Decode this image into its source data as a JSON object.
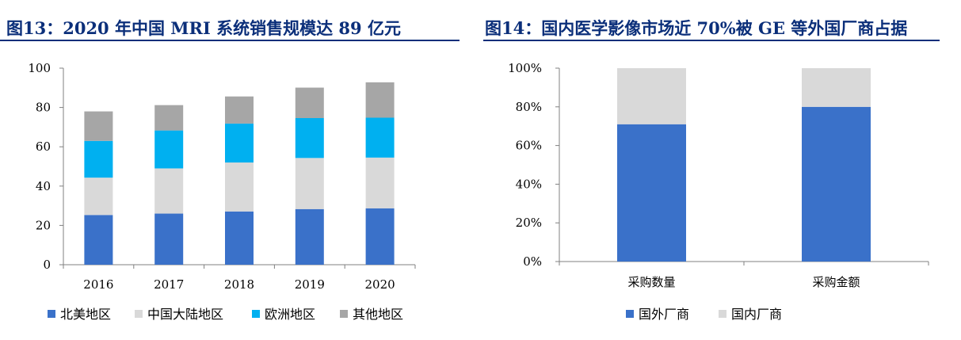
{
  "chart_data": [
    {
      "type": "bar",
      "stacked": true,
      "title": "图13：2020 年中国 MRI 系统销售规模达 89 亿元",
      "categories": [
        "2016",
        "2017",
        "2018",
        "2019",
        "2020"
      ],
      "series": [
        {
          "name": "北美地区",
          "color": "#3a71c9",
          "values": [
            25.3,
            26.0,
            27.1,
            28.3,
            28.7
          ]
        },
        {
          "name": "中国大陆地区",
          "color": "#d9d9d9",
          "values": [
            19.0,
            23.0,
            24.9,
            26.0,
            25.8
          ]
        },
        {
          "name": "欧洲地区",
          "color": "#00b0f0",
          "values": [
            18.7,
            19.3,
            19.8,
            20.3,
            20.3
          ]
        },
        {
          "name": "其他地区",
          "color": "#a6a6a6",
          "values": [
            15.0,
            12.9,
            13.8,
            15.5,
            18.0
          ]
        }
      ],
      "ylim": [
        0,
        100
      ],
      "yticks": [
        "0",
        "20",
        "40",
        "60",
        "80",
        "100"
      ],
      "grid": false,
      "legend": "bottom"
    },
    {
      "type": "bar",
      "stacked": true,
      "title": "图14：国内医学影像市场近 70%被 GE 等外国厂商占据",
      "categories": [
        "采购数量",
        "采购金额"
      ],
      "series": [
        {
          "name": "国外厂商",
          "color": "#3a71c9",
          "values": [
            71,
            80
          ]
        },
        {
          "name": "国内厂商",
          "color": "#d9d9d9",
          "values": [
            29,
            20
          ]
        }
      ],
      "ylim": [
        0,
        100
      ],
      "yticks": [
        "0%",
        "20%",
        "40%",
        "60%",
        "80%",
        "100%"
      ],
      "grid": false,
      "legend": "bottom"
    }
  ]
}
